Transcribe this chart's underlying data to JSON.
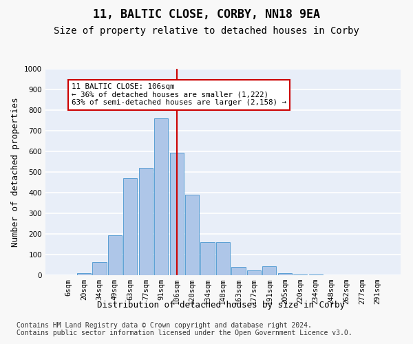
{
  "title": "11, BALTIC CLOSE, CORBY, NN18 9EA",
  "subtitle": "Size of property relative to detached houses in Corby",
  "xlabel": "Distribution of detached houses by size in Corby",
  "ylabel": "Number of detached properties",
  "categories": [
    "6sqm",
    "20sqm",
    "34sqm",
    "49sqm",
    "63sqm",
    "77sqm",
    "91sqm",
    "106sqm",
    "120sqm",
    "134sqm",
    "148sqm",
    "163sqm",
    "177sqm",
    "191sqm",
    "205sqm",
    "220sqm",
    "234sqm",
    "248sqm",
    "262sqm",
    "277sqm",
    "291sqm"
  ],
  "values": [
    0,
    10,
    65,
    195,
    470,
    520,
    760,
    595,
    390,
    160,
    160,
    40,
    25,
    45,
    10,
    5,
    5,
    0,
    0,
    0,
    0
  ],
  "bar_color": "#aec6e8",
  "bar_edge_color": "#5a9fd4",
  "highlight_label": "106sqm",
  "highlight_line_color": "#cc0000",
  "annotation_text": "11 BALTIC CLOSE: 106sqm\n← 36% of detached houses are smaller (1,222)\n63% of semi-detached houses are larger (2,158) →",
  "annotation_box_color": "#ffffff",
  "annotation_box_edge_color": "#cc0000",
  "ylim": [
    0,
    1000
  ],
  "yticks": [
    0,
    100,
    200,
    300,
    400,
    500,
    600,
    700,
    800,
    900,
    1000
  ],
  "footer": "Contains HM Land Registry data © Crown copyright and database right 2024.\nContains public sector information licensed under the Open Government Licence v3.0.",
  "bg_color": "#e8eef8",
  "grid_color": "#ffffff",
  "fig_bg_color": "#f8f8f8",
  "title_fontsize": 12,
  "subtitle_fontsize": 10,
  "axis_label_fontsize": 9,
  "tick_fontsize": 7.5,
  "footer_fontsize": 7
}
